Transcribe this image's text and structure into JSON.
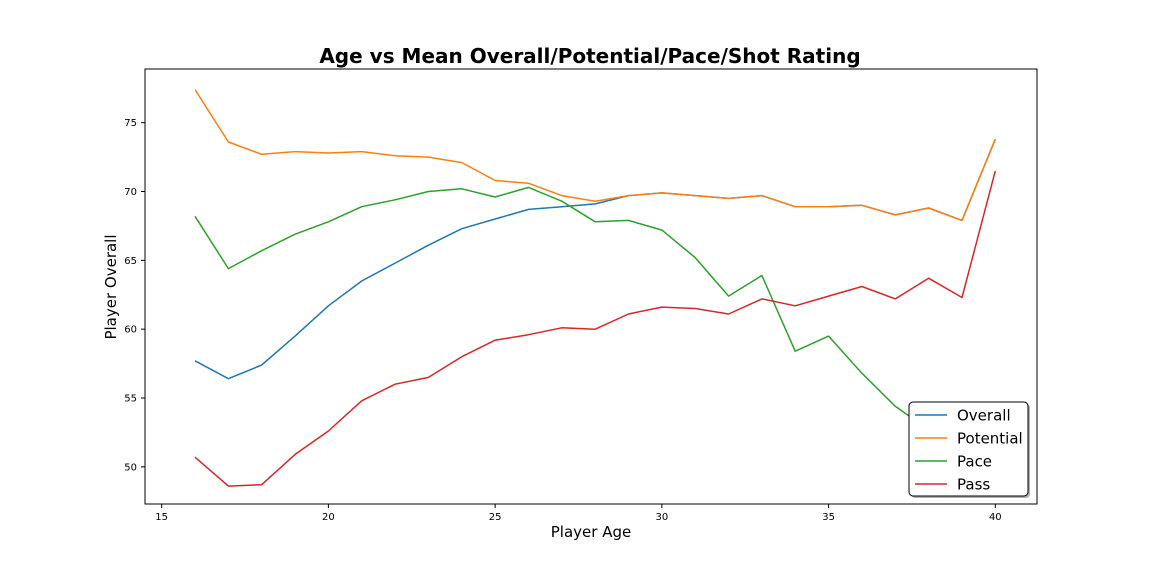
{
  "chart_data": {
    "type": "line",
    "title": "Age vs Mean Overall/Potential/Pace/Shot Rating",
    "xlabel": "Player Age",
    "ylabel": "Player Overall",
    "xlim": [
      14.5,
      41.25
    ],
    "ylim": [
      47.3,
      78.9
    ],
    "xticks": [
      15,
      20,
      25,
      30,
      35,
      40
    ],
    "yticks": [
      50,
      55,
      60,
      65,
      70,
      75
    ],
    "grid": false,
    "legend_position": "lower-right",
    "x": [
      16,
      17,
      18,
      19,
      20,
      21,
      22,
      23,
      24,
      25,
      26,
      27,
      28,
      29,
      30,
      31,
      32,
      33,
      34,
      35,
      36,
      37,
      38,
      39,
      40
    ],
    "series": [
      {
        "name": "Overall",
        "color": "#1f77b4",
        "values": [
          57.7,
          56.4,
          57.4,
          59.5,
          61.7,
          63.5,
          64.8,
          66.1,
          67.3,
          68.0,
          68.7,
          68.9,
          69.1,
          69.7,
          69.9,
          69.7,
          69.5,
          69.7,
          68.9,
          68.9,
          69.0,
          68.3,
          68.8,
          67.9,
          73.8
        ]
      },
      {
        "name": "Potential",
        "color": "#ff7f0e",
        "values": [
          77.4,
          73.6,
          72.7,
          72.9,
          72.8,
          72.9,
          72.6,
          72.5,
          72.1,
          70.8,
          70.6,
          69.7,
          69.3,
          69.7,
          69.9,
          69.7,
          69.5,
          69.7,
          68.9,
          68.9,
          69.0,
          68.3,
          68.8,
          67.9,
          73.8
        ]
      },
      {
        "name": "Pace",
        "color": "#2ca02c",
        "values": [
          68.2,
          64.4,
          65.7,
          66.9,
          67.8,
          68.9,
          69.4,
          70.0,
          70.2,
          69.6,
          70.3,
          69.3,
          67.8,
          67.9,
          67.2,
          65.2,
          62.4,
          63.9,
          58.4,
          59.5,
          56.8,
          54.4,
          52.7,
          52.9,
          53.0
        ]
      },
      {
        "name": "Pass",
        "color": "#d62728",
        "values": [
          50.7,
          48.6,
          48.7,
          50.9,
          52.6,
          54.8,
          56.0,
          56.5,
          58.0,
          59.2,
          59.6,
          60.1,
          60.0,
          61.1,
          61.6,
          61.5,
          61.1,
          62.2,
          61.7,
          62.4,
          63.1,
          62.2,
          63.7,
          62.3,
          71.5
        ]
      }
    ]
  }
}
